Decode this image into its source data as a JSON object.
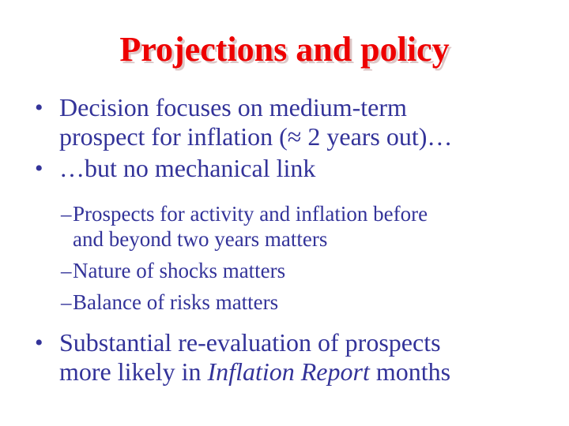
{
  "slide": {
    "title": "Projections and policy",
    "colors": {
      "background": "#ffffff",
      "title": "#ee0000",
      "title_shadow": "#ddc7c7",
      "body_text": "#333399"
    },
    "bullets": [
      {
        "marker": "•",
        "lines": [
          "Decision focuses on medium-term",
          "prospect for inflation (≈ 2 years out)…"
        ]
      },
      {
        "marker": "•",
        "lines": [
          "…but no mechanical link"
        ]
      },
      {
        "marker": "–",
        "lines": [
          "Prospects for activity and inflation before",
          "and beyond two years matters"
        ]
      },
      {
        "marker": "–",
        "lines": [
          "Nature of shocks matters"
        ]
      },
      {
        "marker": "–",
        "lines": [
          "Balance of risks matters"
        ]
      },
      {
        "marker": "•",
        "line1": "Substantial re-evaluation of prospects",
        "line2": {
          "before": "more likely in ",
          "italic": "Inflation Report",
          "after": " months"
        }
      }
    ]
  }
}
